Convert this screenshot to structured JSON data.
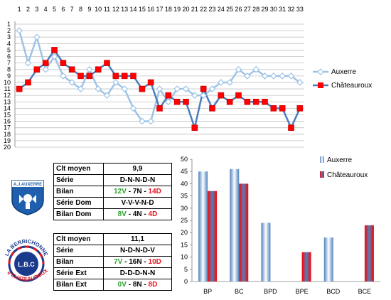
{
  "chart_data": [
    {
      "type": "line",
      "x": [
        1,
        2,
        3,
        4,
        5,
        6,
        7,
        8,
        9,
        10,
        11,
        12,
        13,
        14,
        15,
        16,
        17,
        18,
        19,
        20,
        21,
        22,
        23,
        24,
        25,
        26,
        27,
        28,
        29,
        30,
        31,
        32,
        33
      ],
      "y_ticks": [
        1,
        2,
        3,
        4,
        5,
        6,
        7,
        8,
        9,
        10,
        11,
        12,
        13,
        14,
        15,
        16,
        17,
        18,
        19,
        20
      ],
      "ylim": [
        1,
        20
      ],
      "y_inverted": true,
      "x_axis_position": "top",
      "grid": true,
      "legend": "right",
      "series": [
        {
          "name": "Auxerre",
          "color": "#9dc3e6",
          "marker": "diamond",
          "values": [
            2,
            7,
            3,
            8,
            6,
            9,
            10,
            11,
            8,
            11,
            12,
            10,
            11,
            14,
            16,
            16,
            11,
            13,
            11,
            11,
            12,
            12,
            11,
            10,
            10,
            8,
            9,
            8,
            9,
            9,
            9,
            9,
            10
          ]
        },
        {
          "name": "Châteauroux",
          "color": "#ff0000",
          "line_color": "#4a7ebb",
          "marker": "square",
          "values": [
            11,
            10,
            8,
            7,
            5,
            7,
            8,
            9,
            9,
            8,
            7,
            9,
            9,
            9,
            11,
            10,
            14,
            12,
            13,
            13,
            17,
            11,
            14,
            12,
            13,
            12,
            13,
            13,
            13,
            14,
            14,
            17,
            14
          ]
        }
      ]
    },
    {
      "type": "bar",
      "categories": [
        "BP",
        "BC",
        "BPD",
        "BPE",
        "BCD",
        "BCE"
      ],
      "ylim": [
        0,
        50
      ],
      "y_ticks": [
        0,
        5,
        10,
        15,
        20,
        25,
        30,
        35,
        40,
        45,
        50
      ],
      "legend": "top-right",
      "series": [
        {
          "name": "Auxerre",
          "color": "#4f81bd",
          "values": [
            45,
            46,
            24,
            0,
            18,
            0
          ]
        },
        {
          "name": "Châteauroux",
          "color": "#c0504d",
          "values": [
            37,
            40,
            0,
            12,
            0,
            23
          ]
        }
      ]
    }
  ],
  "colors": {
    "green": "#2ca02c",
    "red": "#e8141b",
    "auxerre_blue": "#4f81bd",
    "chateauroux_red": "#ff0000"
  },
  "logos": {
    "auxerre": {
      "text": "A.J.AUXERRE",
      "icon": "auxerre-crest-icon"
    },
    "chateauroux": {
      "top_text": "LA BERRICHONNE",
      "mid_text": "L.B.C",
      "bottom_text": "de CHATEAUROUX",
      "icon": "chateauroux-crest-icon"
    }
  },
  "auxerre_table": {
    "clt_label": "Clt moyen",
    "clt_value": "9,9",
    "serie_label": "Série",
    "serie_value": "D-N-N-D-N",
    "bilan_label": "Bilan",
    "bilan_w": "12V",
    "bilan_d": "7N",
    "bilan_l": "14D",
    "serie_dom_label": "Série Dom",
    "serie_dom_value": "V-V-V-N-D",
    "bilan_dom_label": "Bilan Dom",
    "bilan_dom_w": "8V",
    "bilan_dom_d": "4N",
    "bilan_dom_l": "4D",
    "sep": "-"
  },
  "chateauroux_table": {
    "clt_label": "Clt moyen",
    "clt_value": "11,1",
    "serie_label": "Série",
    "serie_value": "N-D-N-D-V",
    "bilan_label": "Bilan",
    "bilan_w": "7V",
    "bilan_d": "16N",
    "bilan_l": "10D",
    "serie_ext_label": "Série Ext",
    "serie_ext_value": "D-D-D-N-N",
    "bilan_ext_label": "Bilan Ext",
    "bilan_ext_w": "0V",
    "bilan_ext_d": "8N",
    "bilan_ext_l": "8D",
    "sep": "-"
  }
}
